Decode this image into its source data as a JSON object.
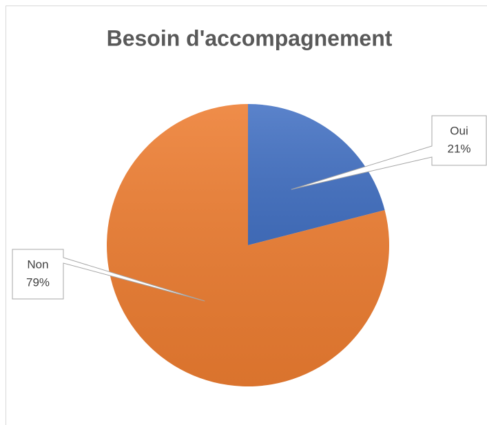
{
  "chart_data": {
    "type": "pie",
    "title": "Besoin d'accompagnement",
    "categories": [
      "Oui",
      "Non"
    ],
    "values": [
      21,
      79
    ],
    "value_labels": [
      "21%",
      "79%"
    ],
    "colors": [
      "#4472c4",
      "#ed7d31"
    ]
  }
}
